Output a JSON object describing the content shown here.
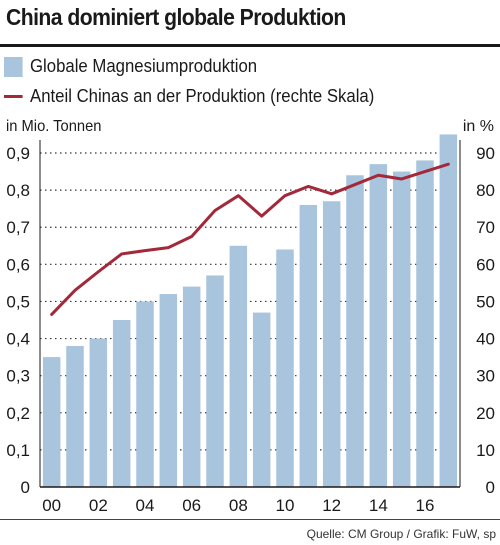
{
  "title": "China dominiert globale Produktion",
  "legend": {
    "bars": "Globale Magnesiumproduktion",
    "line": "Anteil Chinas an der Produktion (rechte Skala)"
  },
  "units": {
    "left": "in Mio. Tonnen",
    "right": "in %"
  },
  "source": "Quelle: CM Group / Grafik: FuW, sp",
  "colors": {
    "bar": "#a9c4dd",
    "line": "#a3283a",
    "grid": "#333333"
  },
  "chart_data": {
    "type": "bar",
    "title": "China dominiert globale Produktion",
    "x_tick_labels": [
      "00",
      "02",
      "04",
      "06",
      "08",
      "10",
      "12",
      "14",
      "16"
    ],
    "years": [
      2000,
      2001,
      2002,
      2003,
      2004,
      2005,
      2006,
      2007,
      2008,
      2009,
      2010,
      2011,
      2012,
      2013,
      2014,
      2015,
      2016,
      2017
    ],
    "y_left": {
      "label": "in Mio. Tonnen",
      "range": [
        0,
        0.9
      ],
      "ticks": [
        "0",
        "0,1",
        "0,2",
        "0,3",
        "0,4",
        "0,5",
        "0,6",
        "0,7",
        "0,8",
        "0,9"
      ]
    },
    "y_right": {
      "label": "in %",
      "range": [
        0,
        90
      ],
      "ticks": [
        "0",
        "10",
        "20",
        "30",
        "40",
        "50",
        "60",
        "70",
        "80",
        "90"
      ]
    },
    "grid": "dotted horizontal",
    "series": [
      {
        "name": "Globale Magnesiumproduktion",
        "kind": "bar",
        "axis": "left",
        "values": [
          0.35,
          0.38,
          0.4,
          0.45,
          0.5,
          0.52,
          0.54,
          0.57,
          0.65,
          0.47,
          0.64,
          0.76,
          0.77,
          0.84,
          0.87,
          0.85,
          0.88,
          0.95
        ]
      },
      {
        "name": "Anteil Chinas an der Produktion (rechte Skala)",
        "kind": "line",
        "axis": "right",
        "values": [
          46.5,
          53,
          58,
          62.8,
          63.7,
          64.5,
          67.5,
          74.5,
          78.5,
          73,
          78.5,
          81,
          79,
          81.5,
          84,
          83,
          85,
          87
        ]
      }
    ]
  }
}
